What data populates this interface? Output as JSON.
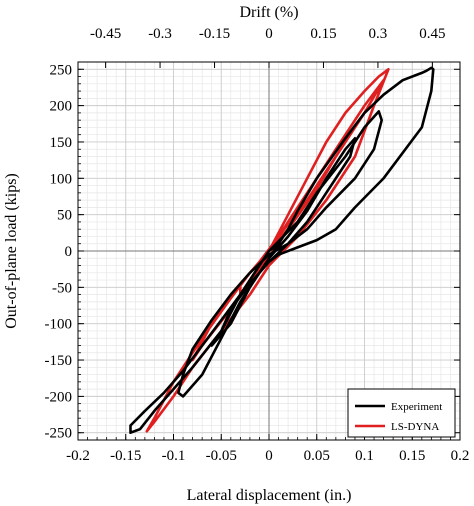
{
  "chart_data": {
    "type": "line",
    "title": "",
    "xlabel": "Lateral displacement (in.)",
    "ylabel": "Out-of-plane load (kips)",
    "x2label": "Drift (%)",
    "xlim": [
      -0.2,
      0.2
    ],
    "ylim": [
      -260,
      260
    ],
    "x_ticks": [
      "-0.2",
      "-0.15",
      "-0.1",
      "-0.05",
      "0",
      "0.05",
      "0.1",
      "0.15",
      "0.2"
    ],
    "x_tick_values": [
      -0.2,
      -0.15,
      -0.1,
      -0.05,
      0,
      0.05,
      0.1,
      0.15,
      0.2
    ],
    "y_ticks": [
      "250",
      "200",
      "150",
      "100",
      "50",
      "0",
      "-50",
      "-100",
      "-150",
      "-200",
      "-250"
    ],
    "y_tick_values": [
      250,
      200,
      150,
      100,
      50,
      0,
      -50,
      -100,
      -150,
      -200,
      -250
    ],
    "x2_ticks": [
      "-0.45",
      "-0.3",
      "-0.15",
      "0",
      "0.15",
      "0.3",
      "0.45"
    ],
    "x2_tick_values": [
      -0.45,
      -0.3,
      -0.15,
      0,
      0.15,
      0.3,
      0.45
    ],
    "x2_scale": 2.63,
    "grid": true,
    "legend_position": "bottom-right",
    "series": [
      {
        "name": "Experiment",
        "color": "#000000",
        "x": [
          0,
          0.01,
          0.02,
          0.03,
          0.05,
          0.08,
          0.1,
          0.12,
          0.14,
          0.16,
          0.165,
          0.17,
          0.172,
          0.17,
          0.16,
          0.12,
          0.09,
          0.07,
          0.05,
          0.03,
          0.01,
          0,
          -0.01,
          -0.03,
          -0.05,
          -0.07,
          -0.09,
          -0.11,
          -0.13,
          -0.145,
          -0.145,
          -0.135,
          -0.12,
          -0.1,
          -0.08,
          -0.05,
          -0.03,
          -0.01,
          0,
          0.03,
          0.05,
          0.08,
          0.1,
          0.115,
          0.118,
          0.11,
          0.09,
          0.06,
          0.04,
          0.02,
          0,
          -0.02,
          -0.04,
          -0.06,
          -0.08,
          -0.09,
          -0.095,
          -0.09,
          -0.07,
          -0.05,
          -0.03,
          -0.01,
          0,
          0.02,
          0.04,
          0.06,
          0.08,
          0.09,
          0.085,
          0.06,
          0.04,
          0.02,
          0,
          -0.02,
          -0.04,
          -0.05,
          -0.06,
          -0.04,
          -0.02,
          0,
          0.01
        ],
        "y": [
          0,
          10,
          30,
          55,
          100,
          155,
          190,
          215,
          235,
          245,
          248,
          252,
          250,
          220,
          170,
          100,
          60,
          30,
          15,
          5,
          -5,
          -15,
          -30,
          -60,
          -95,
          -130,
          -165,
          -195,
          -220,
          -240,
          -250,
          -245,
          -220,
          -190,
          -160,
          -110,
          -60,
          -20,
          0,
          40,
          80,
          130,
          170,
          192,
          180,
          140,
          100,
          60,
          30,
          10,
          -5,
          -30,
          -60,
          -95,
          -135,
          -170,
          -195,
          -200,
          -170,
          -120,
          -70,
          -30,
          -10,
          20,
          55,
          100,
          140,
          155,
          130,
          80,
          40,
          10,
          -15,
          -45,
          -80,
          -110,
          -130,
          -100,
          -50,
          -10,
          10
        ]
      },
      {
        "name": "LS-DYNA",
        "color": "#e02020",
        "x": [
          0,
          0.02,
          0.04,
          0.06,
          0.08,
          0.1,
          0.115,
          0.125,
          0.11,
          0.09,
          0.06,
          0.03,
          0,
          -0.02,
          -0.05,
          -0.08,
          -0.1,
          -0.12,
          -0.128,
          -0.12,
          -0.1,
          -0.07,
          -0.04,
          -0.02,
          0,
          0.02,
          0.05,
          0.08,
          0.1,
          0.12,
          0.1,
          0.07,
          0.04,
          0.01,
          -0.01,
          -0.04,
          -0.06,
          -0.08,
          -0.07,
          -0.04,
          -0.02,
          0,
          0.02,
          0.05,
          0.07,
          0.06,
          0.03,
          0.01,
          -0.01,
          -0.03,
          -0.03,
          -0.01,
          0
        ],
        "y": [
          0,
          50,
          100,
          150,
          190,
          220,
          240,
          250,
          200,
          130,
          70,
          20,
          -20,
          -60,
          -110,
          -160,
          -200,
          -235,
          -248,
          -230,
          -180,
          -120,
          -65,
          -30,
          0,
          40,
          100,
          160,
          200,
          235,
          190,
          130,
          70,
          20,
          -15,
          -60,
          -100,
          -150,
          -130,
          -80,
          -40,
          0,
          30,
          85,
          130,
          110,
          50,
          10,
          -25,
          -60,
          -45,
          -15,
          0
        ]
      }
    ]
  }
}
